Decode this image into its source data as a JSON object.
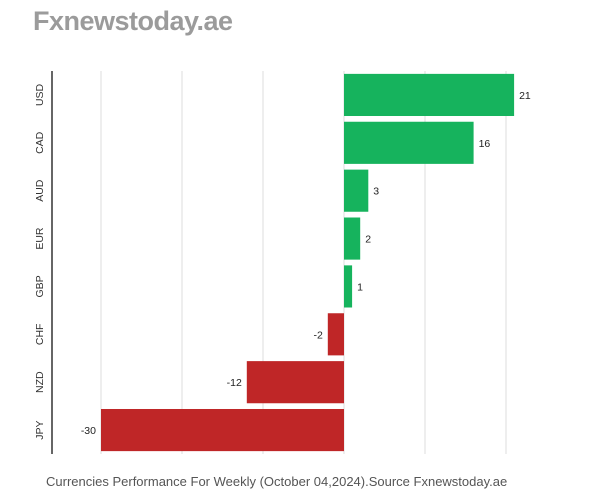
{
  "brand": "Fxnewstoday.ae",
  "caption": "Currencies Performance For Weekly (October 04,2024).Source Fxnewstoday.ae",
  "colors": {
    "positive": "#16b35d",
    "negative": "#bf2627",
    "grid": "#dcdcdc",
    "axis": "#333333"
  },
  "chart_data": {
    "type": "bar",
    "orientation": "horizontal",
    "categories": [
      "USD",
      "CAD",
      "AUD",
      "EUR",
      "GBP",
      "CHF",
      "NZD",
      "JPY"
    ],
    "values": [
      21,
      16,
      3,
      2,
      1,
      -2,
      -12,
      -30
    ],
    "xlim": [
      -30,
      21
    ],
    "grid": true,
    "legend": "none"
  }
}
